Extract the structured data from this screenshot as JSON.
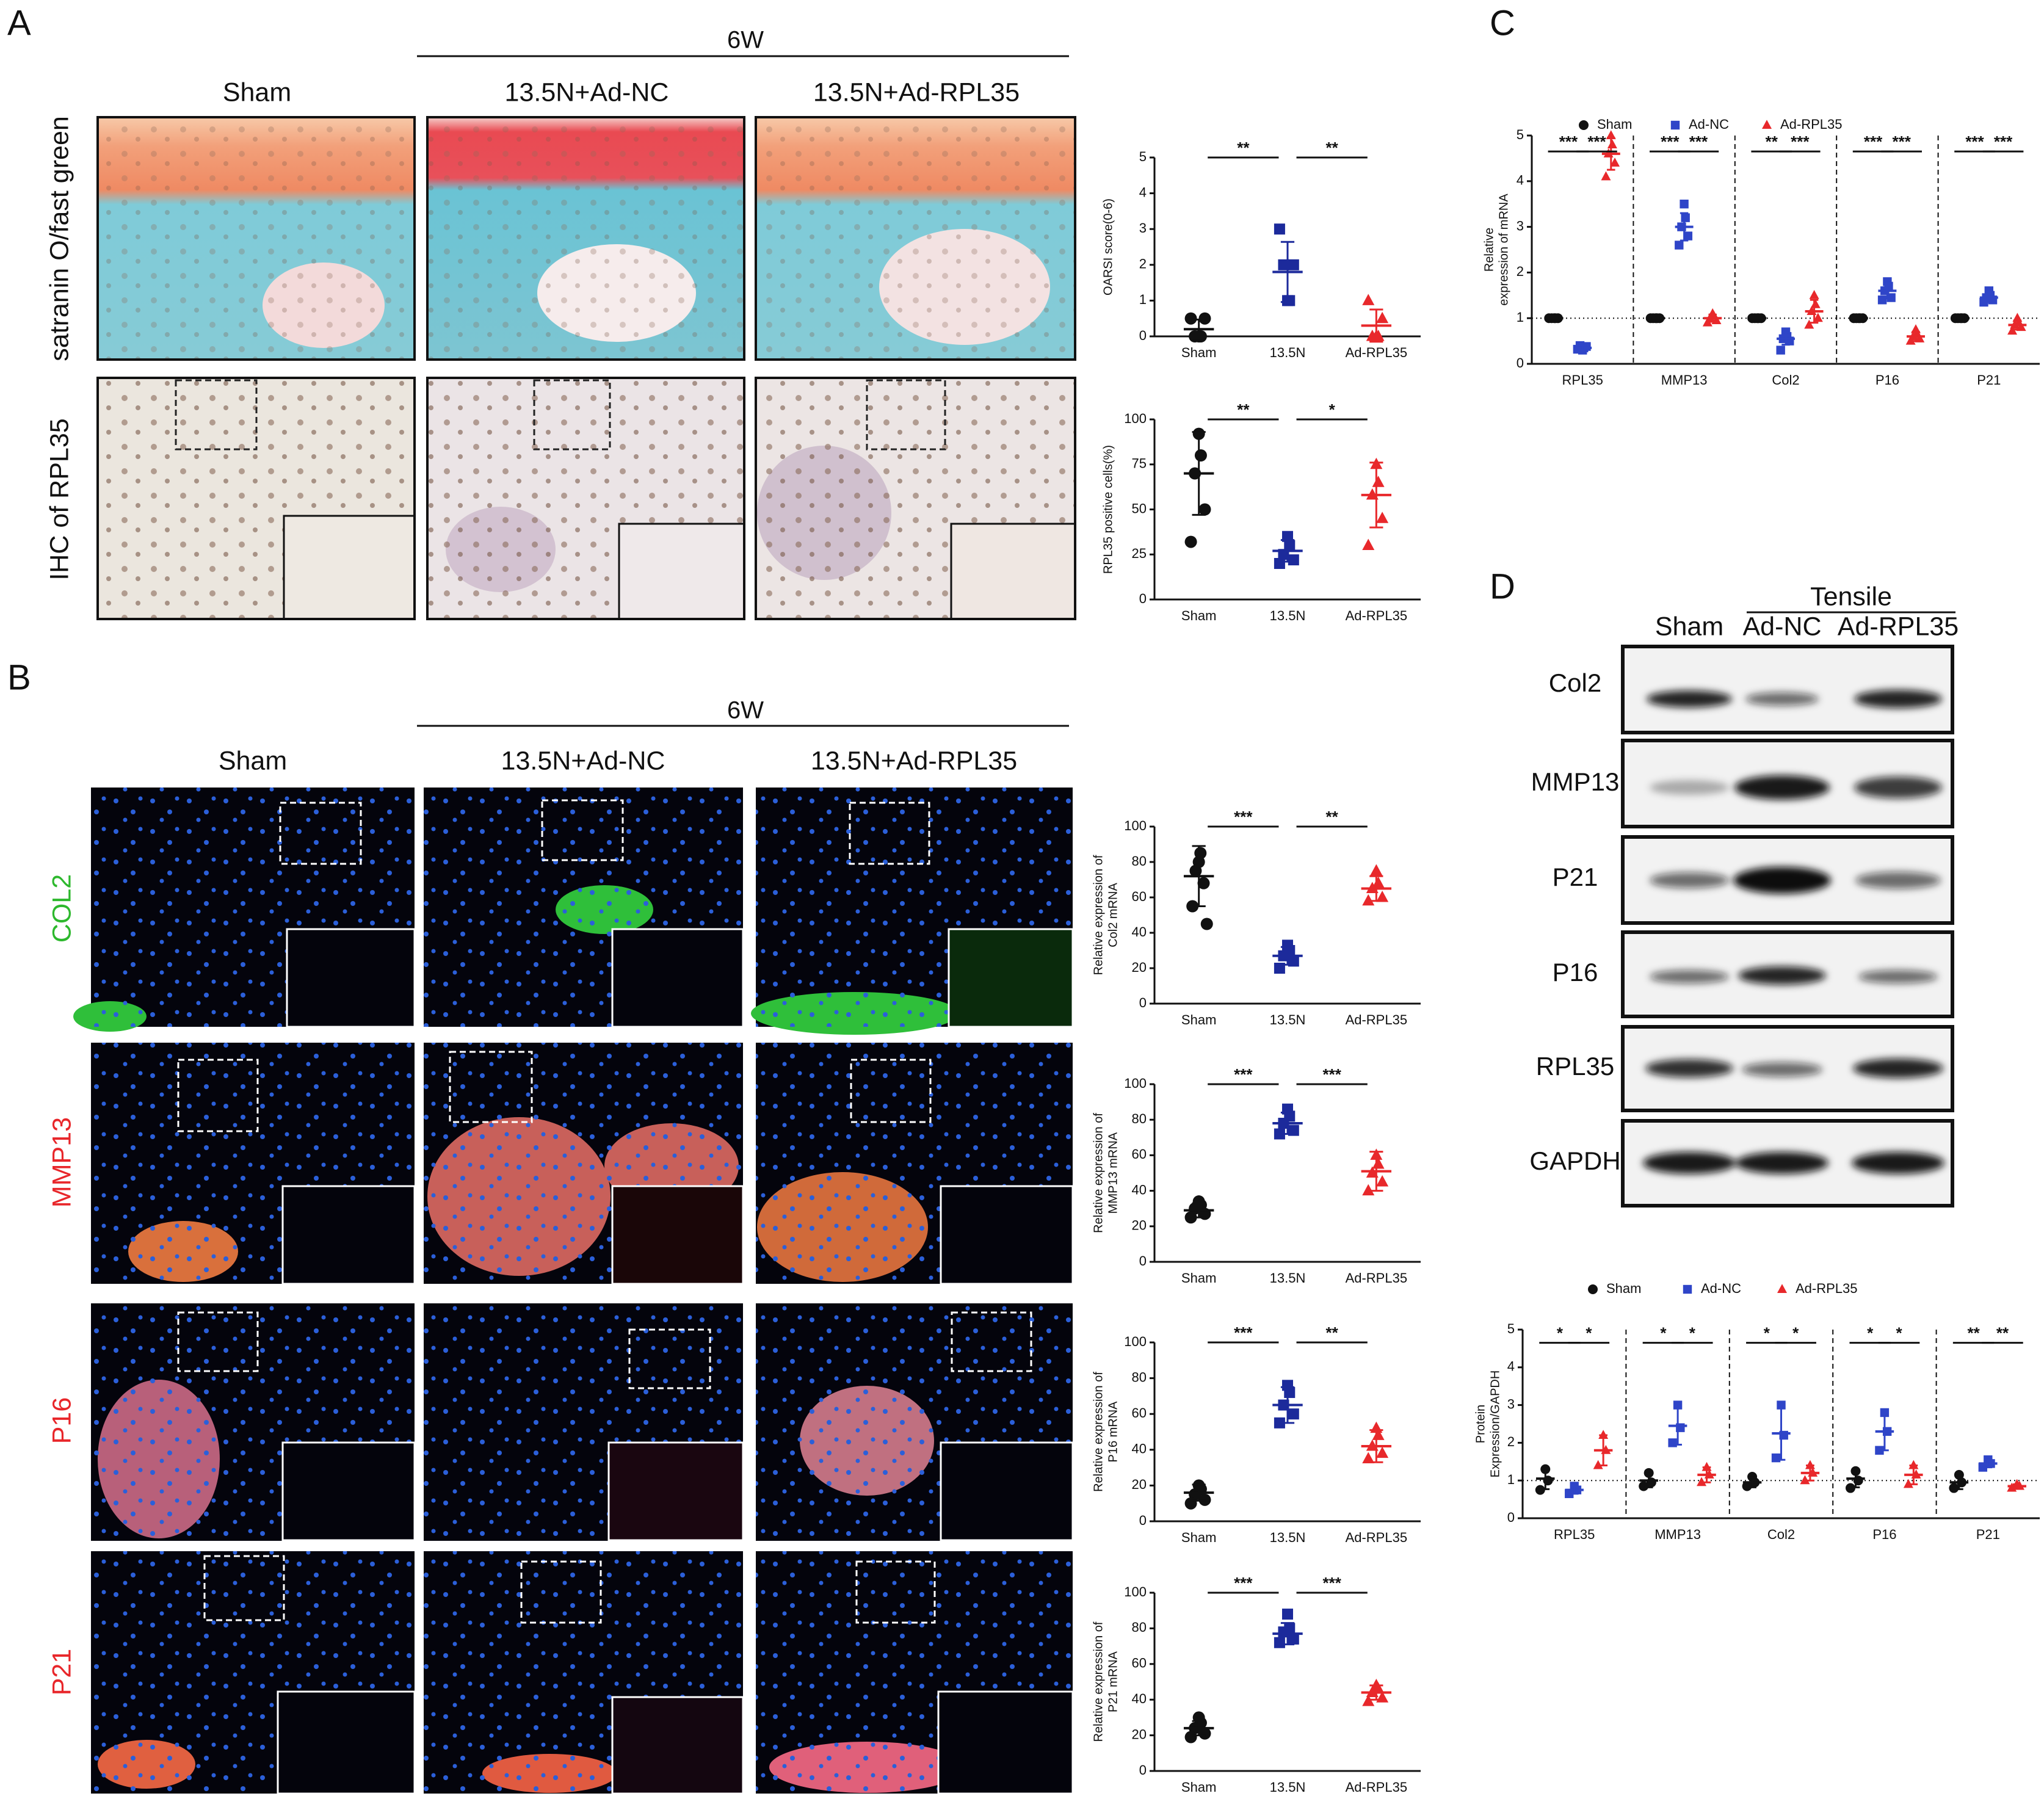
{
  "panels": {
    "A": {
      "label": "A",
      "time": "6W",
      "columns": [
        "Sham",
        "13.5N+Ad-NC",
        "13.5N+Ad-RPL35"
      ],
      "rows": [
        "satranin O/fast green",
        "IHC of RPL35"
      ]
    },
    "B": {
      "label": "B",
      "time": "6W",
      "columns": [
        "Sham",
        "13.5N+Ad-NC",
        "13.5N+Ad-RPL35"
      ],
      "rows": [
        "COL2",
        "MMP13",
        "P16",
        "P21"
      ]
    },
    "C": {
      "label": "C"
    },
    "D": {
      "label": "D",
      "group": "Tensile",
      "columns": [
        "Sham",
        "Ad-NC",
        "Ad-RPL35"
      ],
      "blots": [
        "Col2",
        "MMP13",
        "P21",
        "P16",
        "RPL35",
        "GAPDH"
      ]
    }
  },
  "chart_data": [
    {
      "type": "dot",
      "ylabel": [
        "OARSI score(0-6)"
      ],
      "categories": [
        "Sham",
        "13.5N",
        "Ad-RPL35"
      ],
      "colors": [
        "#111111",
        "#1c2a9b",
        "#e8282b"
      ],
      "markers": [
        "circle",
        "square",
        "triangle"
      ],
      "points": [
        [
          0,
          0,
          0,
          0.5,
          0.5
        ],
        [
          1,
          1,
          2,
          2,
          3
        ],
        [
          0,
          0,
          0,
          0.5,
          1
        ]
      ],
      "values": [
        0.2,
        1.8,
        0.3
      ],
      "errors": [
        0.27,
        0.84,
        0.45
      ],
      "significance": [
        "**",
        "**"
      ],
      "ylim": [
        0,
        5
      ],
      "yticks": [
        0,
        1,
        2,
        3,
        4,
        5
      ]
    },
    {
      "type": "dot",
      "ylabel": [
        "RPL35 positive cells(%)"
      ],
      "categories": [
        "Sham",
        "13.5N",
        "Ad-RPL35"
      ],
      "colors": [
        "#111111",
        "#1c2a9b",
        "#e8282b"
      ],
      "markers": [
        "circle",
        "square",
        "triangle"
      ],
      "points": [
        [
          92,
          80,
          70,
          50,
          32
        ],
        [
          35,
          30,
          25,
          22,
          20
        ],
        [
          75,
          65,
          58,
          45,
          30
        ]
      ],
      "values": [
        70,
        27,
        58
      ],
      "errors": [
        23,
        6,
        18
      ],
      "significance": [
        "**",
        "*"
      ],
      "ylim": [
        0,
        100
      ],
      "yticks": [
        0,
        25,
        50,
        75,
        100
      ]
    },
    {
      "type": "dot",
      "ylabel": [
        "Relative expression of",
        "Col2 mRNA"
      ],
      "categories": [
        "Sham",
        "13.5N",
        "Ad-RPL35"
      ],
      "colors": [
        "#111111",
        "#1c2a9b",
        "#e8282b"
      ],
      "markers": [
        "circle",
        "square",
        "triangle"
      ],
      "points": [
        [
          80,
          85,
          75,
          68,
          55,
          45
        ],
        [
          33,
          30,
          27,
          24,
          20
        ],
        [
          75,
          68,
          65,
          60,
          58
        ]
      ],
      "values": [
        72,
        27,
        65
      ],
      "errors": [
        17,
        5,
        7
      ],
      "significance": [
        "***",
        "**"
      ],
      "ylim": [
        0,
        100
      ],
      "yticks": [
        0,
        20,
        40,
        60,
        80,
        100
      ]
    },
    {
      "type": "dot",
      "ylabel": [
        "Relative expression of",
        "MMP13 mRNA"
      ],
      "categories": [
        "Sham",
        "13.5N",
        "Ad-RPL35"
      ],
      "colors": [
        "#111111",
        "#1c2a9b",
        "#e8282b"
      ],
      "markers": [
        "circle",
        "square",
        "triangle"
      ],
      "points": [
        [
          34,
          32,
          30,
          27,
          25
        ],
        [
          86,
          82,
          78,
          74,
          72
        ],
        [
          60,
          55,
          50,
          45,
          40
        ]
      ],
      "values": [
        29,
        78,
        51
      ],
      "errors": [
        4,
        6,
        11
      ],
      "significance": [
        "***",
        "***"
      ],
      "ylim": [
        0,
        100
      ],
      "yticks": [
        0,
        20,
        40,
        60,
        80,
        100
      ]
    },
    {
      "type": "dot",
      "ylabel": [
        "Relative expression of",
        "P16 mRNA"
      ],
      "categories": [
        "Sham",
        "13.5N",
        "Ad-RPL35"
      ],
      "colors": [
        "#111111",
        "#1c2a9b",
        "#e8282b"
      ],
      "markers": [
        "circle",
        "square",
        "triangle"
      ],
      "points": [
        [
          20,
          18,
          15,
          12,
          10
        ],
        [
          76,
          72,
          65,
          60,
          55
        ],
        [
          52,
          48,
          42,
          38,
          35
        ]
      ],
      "values": [
        16,
        65,
        42
      ],
      "errors": [
        4.5,
        10,
        9
      ],
      "significance": [
        "***",
        "**"
      ],
      "ylim": [
        0,
        100
      ],
      "yticks": [
        0,
        20,
        40,
        60,
        80,
        100
      ]
    },
    {
      "type": "dot",
      "ylabel": [
        "Relative expression of",
        "P21 mRNA"
      ],
      "categories": [
        "Sham",
        "13.5N",
        "Ad-RPL35"
      ],
      "colors": [
        "#111111",
        "#1c2a9b",
        "#e8282b"
      ],
      "markers": [
        "circle",
        "square",
        "triangle"
      ],
      "points": [
        [
          30,
          27,
          24,
          21,
          19
        ],
        [
          88,
          80,
          78,
          74,
          72
        ],
        [
          48,
          46,
          44,
          41,
          39
        ]
      ],
      "values": [
        24,
        77,
        44
      ],
      "errors": [
        4,
        6,
        4
      ],
      "significance": [
        "***",
        "***"
      ],
      "ylim": [
        0,
        100
      ],
      "yticks": [
        0,
        20,
        40,
        60,
        80,
        100
      ]
    },
    {
      "type": "grouped-dot",
      "ylabel": [
        "Relative",
        "expression of mRNA"
      ],
      "categories": [
        "RPL35",
        "MMP13",
        "Col2",
        "P16",
        "P21"
      ],
      "legend": "top",
      "separators": true,
      "reference_line": 1,
      "series": [
        {
          "name": "Sham",
          "color": "#111111",
          "marker": "circle",
          "points": [
            [
              1,
              1,
              1,
              1,
              1
            ],
            [
              1,
              1,
              1,
              1,
              1
            ],
            [
              1,
              1,
              1,
              1,
              1
            ],
            [
              1,
              1,
              1,
              1,
              1
            ],
            [
              1,
              1,
              1,
              1,
              1
            ]
          ],
          "values": [
            1,
            1,
            1,
            1,
            1
          ],
          "errors": [
            0,
            0,
            0,
            0,
            0
          ]
        },
        {
          "name": "Ad-NC",
          "color": "#2f45c8",
          "marker": "square",
          "points": [
            [
              0.3,
              0.35,
              0.4,
              0.38,
              0.32
            ],
            [
              3.5,
              3.2,
              3.0,
              2.8,
              2.6
            ],
            [
              0.7,
              0.6,
              0.55,
              0.5,
              0.3
            ],
            [
              1.8,
              1.7,
              1.6,
              1.45,
              1.4
            ],
            [
              1.6,
              1.5,
              1.45,
              1.4,
              1.35
            ]
          ],
          "values": [
            0.35,
            3.0,
            0.55,
            1.6,
            1.45
          ],
          "errors": [
            0.05,
            0.3,
            0.13,
            0.17,
            0.1
          ]
        },
        {
          "name": "Ad-RPL35",
          "color": "#e8282b",
          "marker": "triangle",
          "points": [
            [
              5.0,
              4.8,
              4.6,
              4.4,
              4.1
            ],
            [
              1.1,
              1.05,
              1.0,
              0.95,
              0.9
            ],
            [
              1.5,
              1.3,
              1.15,
              1.0,
              0.85
            ],
            [
              0.75,
              0.65,
              0.6,
              0.55,
              0.5
            ],
            [
              1.0,
              0.9,
              0.85,
              0.8,
              0.72
            ]
          ],
          "values": [
            4.6,
            1.0,
            1.15,
            0.6,
            0.85
          ],
          "errors": [
            0.35,
            0.08,
            0.25,
            0.1,
            0.1
          ]
        }
      ],
      "significance": [
        [
          "***",
          "***"
        ],
        [
          "***",
          "***"
        ],
        [
          "**",
          "***"
        ],
        [
          "***",
          "***"
        ],
        [
          "***",
          "***"
        ]
      ],
      "ylim": [
        0,
        5
      ],
      "yticks": [
        0,
        1,
        2,
        3,
        4,
        5
      ]
    },
    {
      "type": "grouped-dot",
      "ylabel": [
        "Protein",
        "Expression/GAPDH"
      ],
      "categories": [
        "RPL35",
        "MMP13",
        "Col2",
        "P16",
        "P21"
      ],
      "legend": "top",
      "separators": true,
      "reference_line": 1,
      "series": [
        {
          "name": "Sham",
          "color": "#111111",
          "marker": "circle",
          "points": [
            [
              1.3,
              1.0,
              0.75
            ],
            [
              1.2,
              0.95,
              0.85
            ],
            [
              1.1,
              0.95,
              0.85
            ],
            [
              1.25,
              1.0,
              0.8
            ],
            [
              1.15,
              0.95,
              0.8
            ]
          ],
          "values": [
            1.05,
            1.0,
            0.95,
            1.05,
            0.95
          ],
          "errors": [
            0.28,
            0.18,
            0.13,
            0.23,
            0.18
          ]
        },
        {
          "name": "Ad-NC",
          "color": "#2f45c8",
          "marker": "square",
          "points": [
            [
              0.85,
              0.75,
              0.65
            ],
            [
              3.0,
              2.4,
              2.0
            ],
            [
              3.0,
              2.2,
              1.6
            ],
            [
              2.8,
              2.3,
              1.8
            ],
            [
              1.55,
              1.45,
              1.35
            ]
          ],
          "values": [
            0.75,
            2.45,
            2.25,
            2.3,
            1.45
          ],
          "errors": [
            0.1,
            0.5,
            0.7,
            0.5,
            0.1
          ]
        },
        {
          "name": "Ad-RPL35",
          "color": "#e8282b",
          "marker": "triangle",
          "points": [
            [
              2.2,
              1.8,
              1.4
            ],
            [
              1.35,
              1.15,
              0.95
            ],
            [
              1.4,
              1.2,
              1.0
            ],
            [
              1.4,
              1.15,
              0.9
            ],
            [
              0.9,
              0.85,
              0.8
            ]
          ],
          "values": [
            1.8,
            1.15,
            1.2,
            1.15,
            0.85
          ],
          "errors": [
            0.4,
            0.2,
            0.2,
            0.25,
            0.05
          ]
        }
      ],
      "significance": [
        [
          "*",
          "*"
        ],
        [
          "*",
          "*"
        ],
        [
          "*",
          "*"
        ],
        [
          "*",
          "*"
        ],
        [
          "**",
          "**"
        ]
      ],
      "ylim": [
        0,
        5
      ],
      "yticks": [
        0,
        1,
        2,
        3,
        4,
        5
      ]
    }
  ]
}
